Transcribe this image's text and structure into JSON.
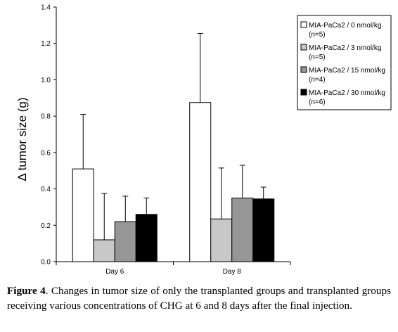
{
  "chart_data": {
    "type": "bar",
    "title": "",
    "xlabel": "",
    "ylabel": "Δ tumor size (g)",
    "ylim": [
      0,
      1.4
    ],
    "yticks": [
      "0.0",
      "0.2",
      "0.4",
      "0.6",
      "0.8",
      "1.0",
      "1.2",
      "1.4"
    ],
    "categories": [
      "Day 6",
      "Day 8"
    ],
    "error_bars": "upper",
    "legend_position": "right",
    "series": [
      {
        "name_line1": "MIA-PaCa2 / 0 nmol/kg",
        "name_line2": "(n=5)",
        "color": "#ffffff",
        "values": [
          0.51,
          0.875
        ],
        "errors": [
          0.3,
          0.38
        ]
      },
      {
        "name_line1": "MIA-PaCa2 / 3 nmol/kg",
        "name_line2": "(n=5)",
        "color": "#c8c8c8",
        "values": [
          0.12,
          0.235
        ],
        "errors": [
          0.255,
          0.28
        ]
      },
      {
        "name_line1": "MIA-PaCa2 / 15 nmol/kg",
        "name_line2": "(n=4)",
        "color": "#969696",
        "values": [
          0.22,
          0.35
        ],
        "errors": [
          0.14,
          0.18
        ]
      },
      {
        "name_line1": "MIA-PaCa2 / 30 nmol/kg",
        "name_line2": "(n=6)",
        "color": "#000000",
        "values": [
          0.26,
          0.345
        ],
        "errors": [
          0.09,
          0.065
        ]
      }
    ]
  },
  "caption": {
    "label": "Figure 4",
    "text": ". Changes in tumor size of only the transplanted groups and transplanted groups receiving various concentrations of CHG at 6 and 8 days after the final injection."
  }
}
